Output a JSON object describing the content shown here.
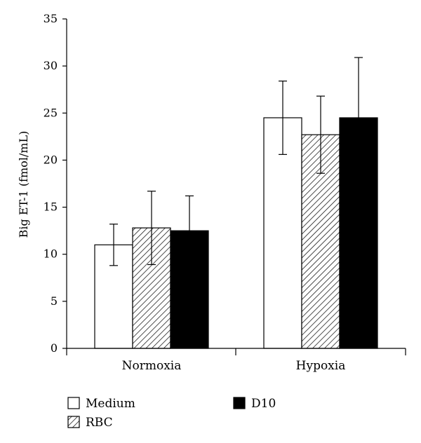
{
  "chart_data": {
    "type": "bar",
    "ylabel": "Big ET-1 (fmol/mL)",
    "xlabel": "",
    "ylim": [
      0,
      35
    ],
    "yticks": [
      0,
      5,
      10,
      15,
      20,
      25,
      30,
      35
    ],
    "categories": [
      "Normoxia",
      "Hypoxia"
    ],
    "series": [
      {
        "name": "Medium",
        "fill": "white",
        "values": [
          11.0,
          24.5
        ],
        "errors": [
          2.2,
          3.9
        ]
      },
      {
        "name": "RBC",
        "fill": "hatch",
        "values": [
          12.8,
          22.7
        ],
        "errors": [
          3.9,
          4.1
        ]
      },
      {
        "name": "D10",
        "fill": "black",
        "values": [
          12.5,
          24.5
        ],
        "errors": [
          3.7,
          6.4
        ]
      }
    ],
    "legend_position": "bottom-left",
    "grid": false
  }
}
